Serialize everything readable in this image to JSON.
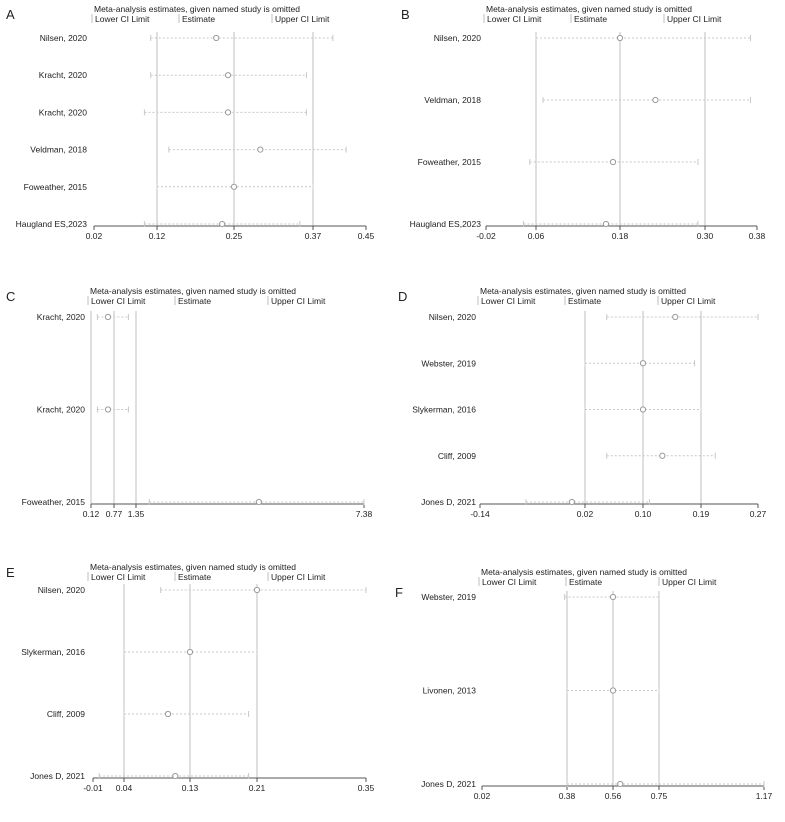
{
  "colors": {
    "axis": "#555555",
    "refline": "#bfbfbf",
    "ci": "#c8c8c8",
    "marker": "#9a9a9a",
    "text": "#222222"
  },
  "chart_data": [
    {
      "type": "forest",
      "panel_label": "A",
      "title": "Meta-analysis estimates, given named study is omitted",
      "legend": [
        "Lower CI Limit",
        "Estimate",
        "Upper CI Limit"
      ],
      "ticks": [
        0.02,
        0.12,
        0.25,
        0.37,
        0.45
      ],
      "tick_labels": [
        "0.02",
        "0.12",
        "0.25",
        "0.37",
        "0.45"
      ],
      "ref_lines": [
        0.12,
        0.25,
        0.37
      ],
      "studies": [
        {
          "name": "Nilsen, 2020",
          "estimate": 0.22,
          "lower": 0.11,
          "upper": 0.4
        },
        {
          "name": "Kracht, 2020",
          "estimate": 0.24,
          "lower": 0.11,
          "upper": 0.36
        },
        {
          "name": "Kracht, 2020",
          "estimate": 0.24,
          "lower": 0.1,
          "upper": 0.36
        },
        {
          "name": "Veldman, 2018",
          "estimate": 0.29,
          "lower": 0.14,
          "upper": 0.42
        },
        {
          "name": "Foweather, 2015",
          "estimate": 0.25,
          "lower": 0.12,
          "upper": 0.37
        },
        {
          "name": "Haugland ES,2023",
          "estimate": 0.23,
          "lower": 0.1,
          "upper": 0.35
        }
      ]
    },
    {
      "type": "forest",
      "panel_label": "B",
      "title": "Meta-analysis estimates, given named study is omitted",
      "legend": [
        "Lower CI Limit",
        "Estimate",
        "Upper CI Limit"
      ],
      "ticks": [
        -0.02,
        0.06,
        0.18,
        0.3,
        0.38
      ],
      "tick_labels": [
        "-0.02",
        "0.06",
        "0.18",
        "0.30",
        "0.38"
      ],
      "ref_lines": [
        0.06,
        0.18,
        0.3
      ],
      "studies": [
        {
          "name": "Nilsen, 2020",
          "estimate": 0.18,
          "lower": 0.06,
          "upper": 0.37
        },
        {
          "name": "Veldman, 2018",
          "estimate": 0.23,
          "lower": 0.07,
          "upper": 0.37
        },
        {
          "name": "Foweather, 2015",
          "estimate": 0.17,
          "lower": 0.05,
          "upper": 0.29
        },
        {
          "name": "Haugland ES,2023",
          "estimate": 0.16,
          "lower": 0.04,
          "upper": 0.29
        }
      ]
    },
    {
      "type": "forest",
      "panel_label": "C",
      "title": "Meta-analysis estimates, given named study is omitted",
      "legend": [
        "Lower CI Limit",
        "Estimate",
        "Upper CI Limit"
      ],
      "ticks": [
        0.12,
        0.77,
        1.35,
        7.38
      ],
      "tick_labels": [
        "0.12",
        "0.77",
        "1.35",
        "7.38"
      ],
      "ref_lines": [
        0.12,
        0.77,
        1.35
      ],
      "studies": [
        {
          "name": "Kracht, 2020",
          "estimate": 0.6,
          "lower": 0.3,
          "upper": 1.15
        },
        {
          "name": "Kracht, 2020",
          "estimate": 0.6,
          "lower": 0.3,
          "upper": 1.15
        },
        {
          "name": "Foweather, 2015",
          "estimate": 4.6,
          "lower": 1.7,
          "upper": 7.38
        }
      ]
    },
    {
      "type": "forest",
      "panel_label": "D",
      "title": "Meta-analysis estimates, given named study is omitted",
      "legend": [
        "Lower CI Limit",
        "Estimate",
        "Upper CI Limit"
      ],
      "ticks": [
        -0.14,
        0.02,
        0.1,
        0.19,
        0.27
      ],
      "tick_labels": [
        "-0.14",
        "0.02",
        "0.10",
        "0.19",
        "0.27"
      ],
      "ref_lines": [
        0.02,
        0.1,
        0.19
      ],
      "studies": [
        {
          "name": "Nilsen, 2020",
          "estimate": 0.15,
          "lower": 0.05,
          "upper": 0.27
        },
        {
          "name": "Webster, 2019",
          "estimate": 0.1,
          "lower": 0.02,
          "upper": 0.18
        },
        {
          "name": "Slykerman, 2016",
          "estimate": 0.1,
          "lower": 0.02,
          "upper": 0.19
        },
        {
          "name": "Cliff, 2009",
          "estimate": 0.13,
          "lower": 0.05,
          "upper": 0.21
        },
        {
          "name": "Jones D, 2021",
          "estimate": 0.0,
          "lower": -0.07,
          "upper": 0.11
        }
      ]
    },
    {
      "type": "forest",
      "panel_label": "E",
      "title": "Meta-analysis estimates, given named study is omitted",
      "legend": [
        "Lower CI Limit",
        "Estimate",
        "Upper CI Limit"
      ],
      "ticks": [
        -0.01,
        0.04,
        0.13,
        0.21,
        0.35
      ],
      "tick_labels": [
        "-0.01",
        "0.04",
        "0.13",
        "0.21",
        "0.35"
      ],
      "ref_lines": [
        0.04,
        0.13,
        0.21
      ],
      "studies": [
        {
          "name": "Nilsen, 2020",
          "estimate": 0.21,
          "lower": 0.09,
          "upper": 0.35
        },
        {
          "name": "Slykerman, 2016",
          "estimate": 0.13,
          "lower": 0.04,
          "upper": 0.21
        },
        {
          "name": "Cliff, 2009",
          "estimate": 0.1,
          "lower": 0.04,
          "upper": 0.2
        },
        {
          "name": "Jones D, 2021",
          "estimate": 0.11,
          "lower": 0.0,
          "upper": 0.2
        }
      ]
    },
    {
      "type": "forest",
      "panel_label": "F",
      "title": "Meta-analysis estimates, given named study is omitted",
      "legend": [
        "Lower CI Limit",
        "Estimate",
        "Upper CI Limit"
      ],
      "ticks": [
        0.02,
        0.38,
        0.56,
        0.75,
        1.17
      ],
      "tick_labels": [
        "0.02",
        "0.38",
        "0.56",
        "0.75",
        "1.17"
      ],
      "ref_lines": [
        0.38,
        0.56,
        0.75
      ],
      "studies": [
        {
          "name": "Webster, 2019",
          "estimate": 0.56,
          "lower": 0.37,
          "upper": 0.75
        },
        {
          "name": "Livonen, 2013",
          "estimate": 0.56,
          "lower": 0.38,
          "upper": 0.75
        },
        {
          "name": "Jones D, 2021",
          "estimate": 0.59,
          "lower": 0.38,
          "upper": 1.17
        }
      ]
    }
  ]
}
